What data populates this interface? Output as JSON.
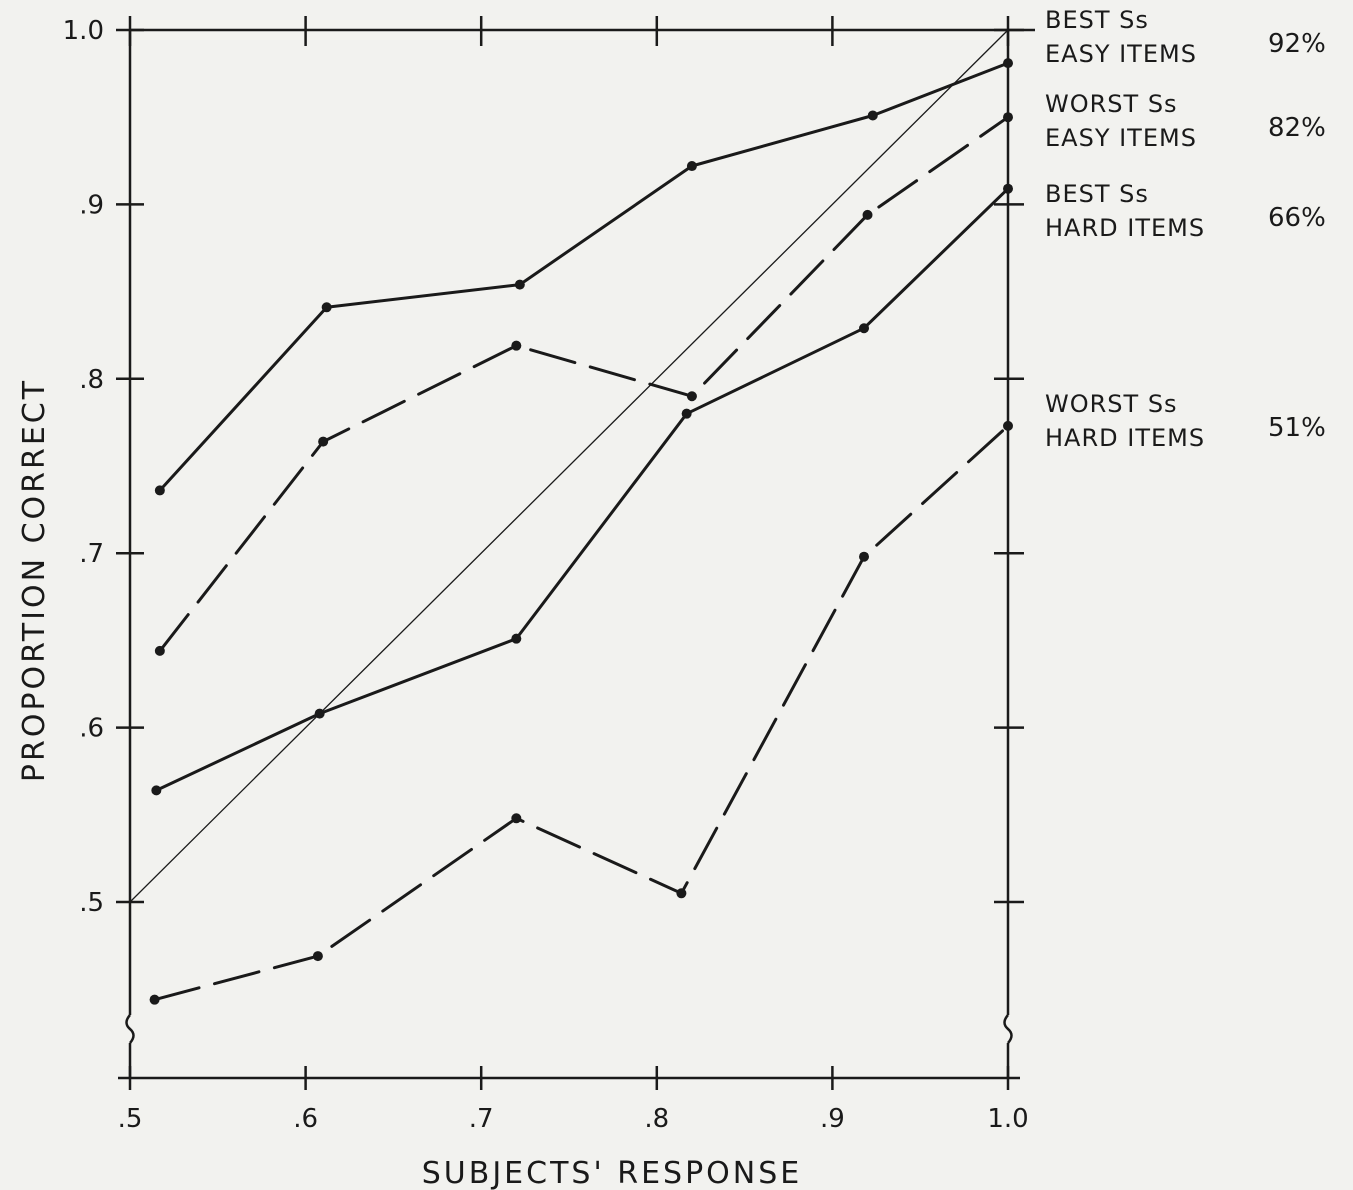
{
  "chart_data": {
    "type": "line",
    "xlabel": "SUBJECTS' RESPONSE",
    "ylabel": "PROPORTION CORRECT",
    "xlim": [
      0.5,
      1.0
    ],
    "ylim": [
      0.5,
      1.0
    ],
    "x_ticks": [
      ".5",
      ".6",
      ".7",
      ".8",
      ".9",
      "1.0"
    ],
    "y_ticks": [
      ".5",
      ".6",
      ".7",
      ".8",
      ".9",
      "1.0"
    ],
    "y_axis_break": true,
    "x_axis_break": true,
    "reference_line": {
      "from": [
        0.5,
        0.5
      ],
      "to": [
        1.0,
        1.0
      ]
    },
    "series": [
      {
        "line1": "BEST Ss",
        "line2": "EASY ITEMS",
        "percent": "92%",
        "style": "solid",
        "x": [
          0.517,
          0.612,
          0.722,
          0.82,
          0.923,
          1.0
        ],
        "y": [
          0.736,
          0.841,
          0.854,
          0.922,
          0.951,
          0.981
        ]
      },
      {
        "line1": "WORST Ss",
        "line2": "EASY ITEMS",
        "percent": "82%",
        "style": "dashed",
        "x": [
          0.517,
          0.61,
          0.72,
          0.82,
          0.92,
          1.0
        ],
        "y": [
          0.644,
          0.764,
          0.819,
          0.79,
          0.894,
          0.95
        ]
      },
      {
        "line1": "BEST Ss",
        "line2": "HARD ITEMS",
        "percent": "66%",
        "style": "solid",
        "x": [
          0.515,
          0.608,
          0.72,
          0.817,
          0.918,
          1.0
        ],
        "y": [
          0.564,
          0.608,
          0.651,
          0.78,
          0.829,
          0.909
        ]
      },
      {
        "line1": "WORST Ss",
        "line2": "HARD ITEMS",
        "percent": "51%",
        "style": "dashed",
        "x": [
          0.514,
          0.607,
          0.72,
          0.814,
          0.918,
          1.0
        ],
        "y": [
          0.444,
          0.469,
          0.548,
          0.505,
          0.698,
          0.773
        ]
      }
    ]
  }
}
